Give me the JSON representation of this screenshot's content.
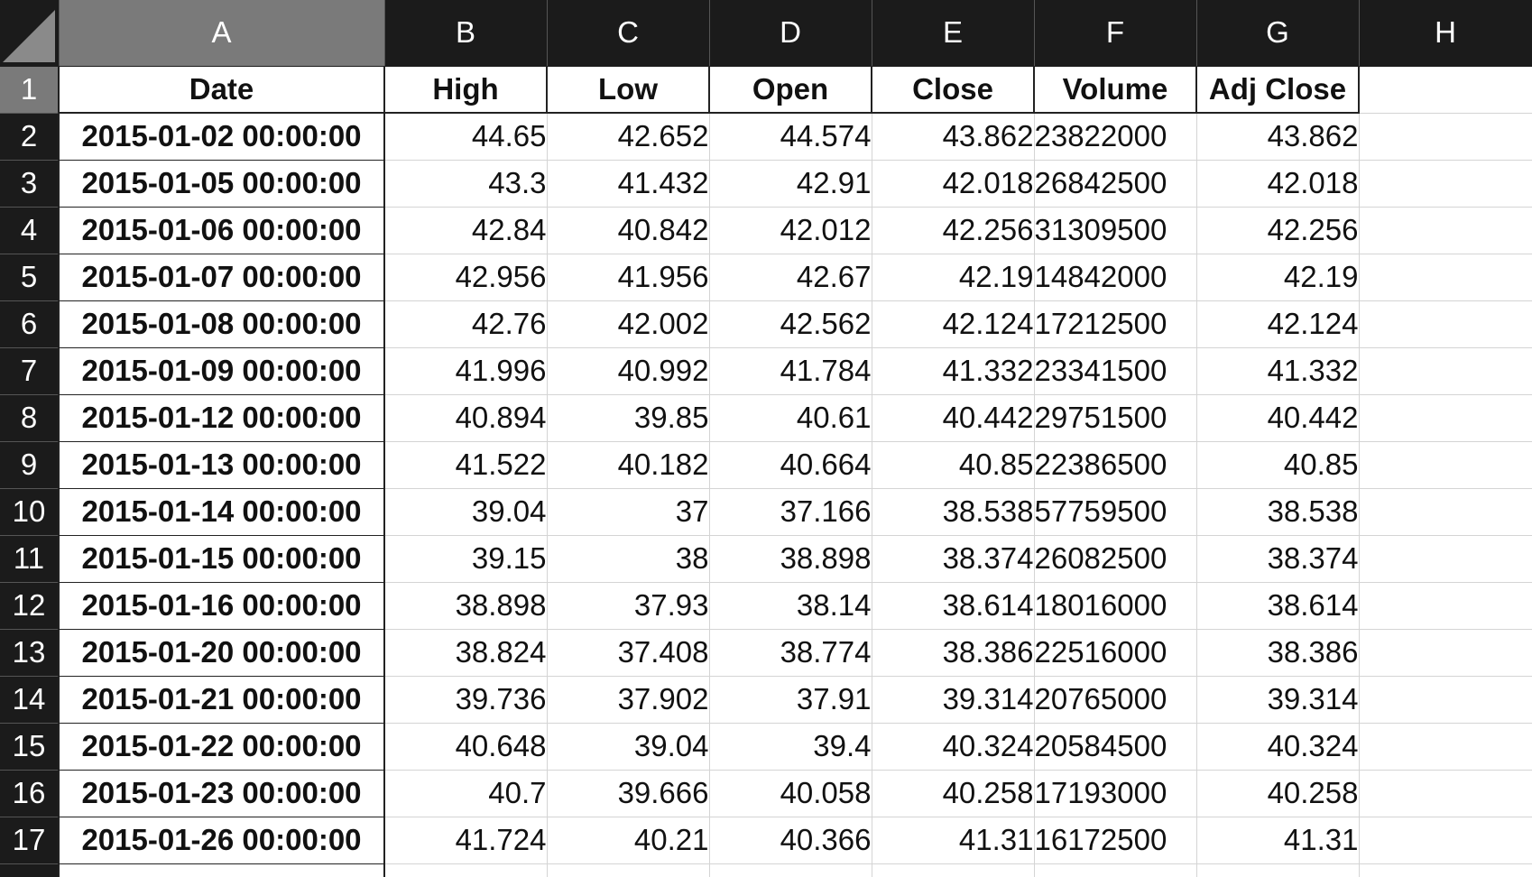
{
  "column_headers": [
    "A",
    "B",
    "C",
    "D",
    "E",
    "F",
    "G",
    "H"
  ],
  "header_row": {
    "row_number": "1",
    "cells": [
      "Date",
      "High",
      "Low",
      "Open",
      "Close",
      "Volume",
      "Adj Close",
      ""
    ]
  },
  "rows": [
    {
      "row_number": "2",
      "date": "2015-01-02 00:00:00",
      "high": "44.65",
      "low": "42.652",
      "open": "44.574",
      "close": "43.862",
      "volume": "23822000",
      "adj_close": "43.862"
    },
    {
      "row_number": "3",
      "date": "2015-01-05 00:00:00",
      "high": "43.3",
      "low": "41.432",
      "open": "42.91",
      "close": "42.018",
      "volume": "26842500",
      "adj_close": "42.018"
    },
    {
      "row_number": "4",
      "date": "2015-01-06 00:00:00",
      "high": "42.84",
      "low": "40.842",
      "open": "42.012",
      "close": "42.256",
      "volume": "31309500",
      "adj_close": "42.256"
    },
    {
      "row_number": "5",
      "date": "2015-01-07 00:00:00",
      "high": "42.956",
      "low": "41.956",
      "open": "42.67",
      "close": "42.19",
      "volume": "14842000",
      "adj_close": "42.19"
    },
    {
      "row_number": "6",
      "date": "2015-01-08 00:00:00",
      "high": "42.76",
      "low": "42.002",
      "open": "42.562",
      "close": "42.124",
      "volume": "17212500",
      "adj_close": "42.124"
    },
    {
      "row_number": "7",
      "date": "2015-01-09 00:00:00",
      "high": "41.996",
      "low": "40.992",
      "open": "41.784",
      "close": "41.332",
      "volume": "23341500",
      "adj_close": "41.332"
    },
    {
      "row_number": "8",
      "date": "2015-01-12 00:00:00",
      "high": "40.894",
      "low": "39.85",
      "open": "40.61",
      "close": "40.442",
      "volume": "29751500",
      "adj_close": "40.442"
    },
    {
      "row_number": "9",
      "date": "2015-01-13 00:00:00",
      "high": "41.522",
      "low": "40.182",
      "open": "40.664",
      "close": "40.85",
      "volume": "22386500",
      "adj_close": "40.85"
    },
    {
      "row_number": "10",
      "date": "2015-01-14 00:00:00",
      "high": "39.04",
      "low": "37",
      "open": "37.166",
      "close": "38.538",
      "volume": "57759500",
      "adj_close": "38.538"
    },
    {
      "row_number": "11",
      "date": "2015-01-15 00:00:00",
      "high": "39.15",
      "low": "38",
      "open": "38.898",
      "close": "38.374",
      "volume": "26082500",
      "adj_close": "38.374"
    },
    {
      "row_number": "12",
      "date": "2015-01-16 00:00:00",
      "high": "38.898",
      "low": "37.93",
      "open": "38.14",
      "close": "38.614",
      "volume": "18016000",
      "adj_close": "38.614"
    },
    {
      "row_number": "13",
      "date": "2015-01-20 00:00:00",
      "high": "38.824",
      "low": "37.408",
      "open": "38.774",
      "close": "38.386",
      "volume": "22516000",
      "adj_close": "38.386"
    },
    {
      "row_number": "14",
      "date": "2015-01-21 00:00:00",
      "high": "39.736",
      "low": "37.902",
      "open": "37.91",
      "close": "39.314",
      "volume": "20765000",
      "adj_close": "39.314"
    },
    {
      "row_number": "15",
      "date": "2015-01-22 00:00:00",
      "high": "40.648",
      "low": "39.04",
      "open": "39.4",
      "close": "40.324",
      "volume": "20584500",
      "adj_close": "40.324"
    },
    {
      "row_number": "16",
      "date": "2015-01-23 00:00:00",
      "high": "40.7",
      "low": "39.666",
      "open": "40.058",
      "close": "40.258",
      "volume": "17193000",
      "adj_close": "40.258"
    },
    {
      "row_number": "17",
      "date": "2015-01-26 00:00:00",
      "high": "41.724",
      "low": "40.21",
      "open": "40.366",
      "close": "41.31",
      "volume": "16172500",
      "adj_close": "41.31"
    }
  ],
  "colors": {
    "header_bg": "#1b1b1b",
    "header_active_bg": "#7a7a7a",
    "grid_line": "#d4d4d4",
    "border_dark": "#222222"
  }
}
